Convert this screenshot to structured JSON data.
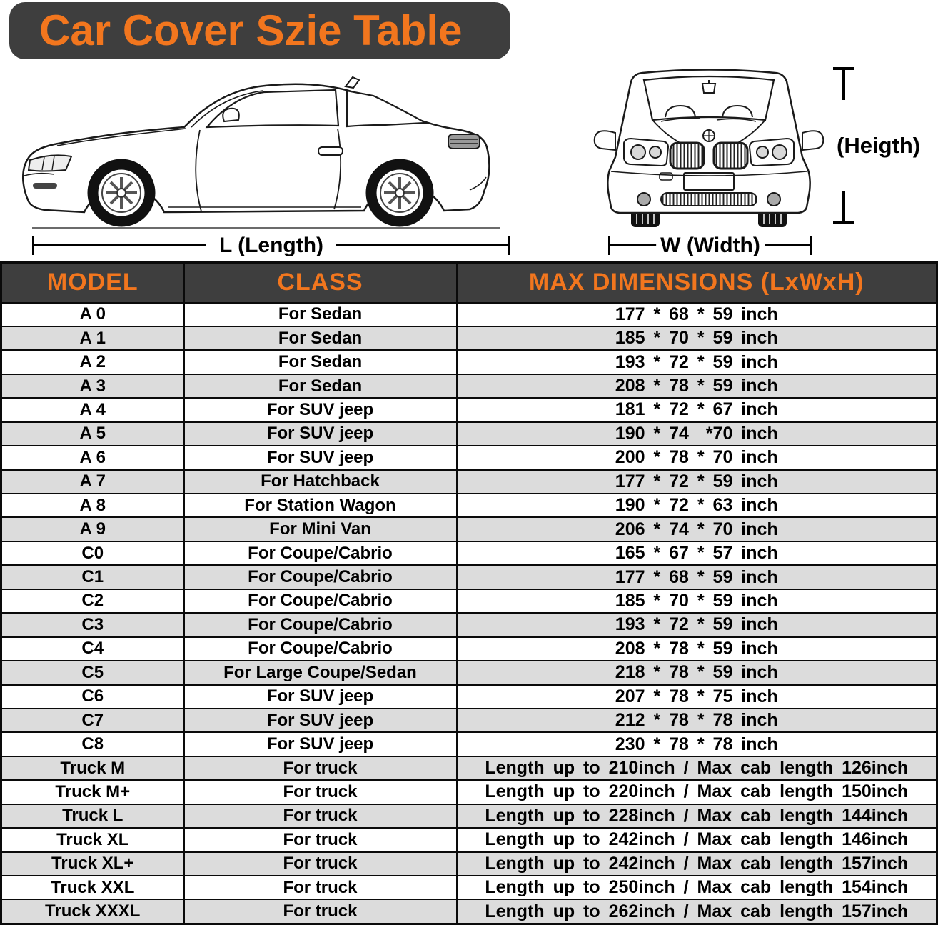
{
  "title": "Car Cover Szie Table",
  "diagram": {
    "length_label": "L (Length)",
    "width_label": "W (Width)",
    "height_label": "(Heigth)"
  },
  "colors": {
    "accent_orange": "#F2761E",
    "header_bg": "#3E3E3E",
    "row_alt_bg": "#DCDCDC",
    "border_black": "#0A0A0A"
  },
  "table": {
    "headers": [
      "MODEL",
      "CLASS",
      "MAX DIMENSIONS (LxWxH)"
    ],
    "rows": [
      {
        "model": "A 0",
        "class": "For Sedan",
        "dims": "177 * 68 * 59 inch"
      },
      {
        "model": "A 1",
        "class": "For Sedan",
        "dims": "185 * 70 * 59 inch"
      },
      {
        "model": "A 2",
        "class": "For Sedan",
        "dims": "193 * 72 * 59 inch"
      },
      {
        "model": "A 3",
        "class": "For Sedan",
        "dims": "208 * 78 * 59 inch"
      },
      {
        "model": "A 4",
        "class": "For SUV jeep",
        "dims": "181 * 72 * 67 inch"
      },
      {
        "model": "A 5",
        "class": "For SUV jeep",
        "dims": "190 * 74  *70 inch"
      },
      {
        "model": "A 6",
        "class": "For SUV jeep",
        "dims": "200 * 78 * 70 inch"
      },
      {
        "model": "A 7",
        "class": "For Hatchback",
        "dims": "177 * 72 * 59 inch"
      },
      {
        "model": "A 8",
        "class": "For Station Wagon",
        "dims": "190 * 72 * 63 inch"
      },
      {
        "model": "A 9",
        "class": "For Mini Van",
        "dims": "206 * 74 * 70 inch"
      },
      {
        "model": "C0",
        "class": "For Coupe/Cabrio",
        "dims": "165 * 67 * 57 inch"
      },
      {
        "model": "C1",
        "class": "For Coupe/Cabrio",
        "dims": "177 * 68 * 59 inch"
      },
      {
        "model": "C2",
        "class": "For Coupe/Cabrio",
        "dims": "185 * 70 * 59 inch"
      },
      {
        "model": "C3",
        "class": "For Coupe/Cabrio",
        "dims": "193 * 72 * 59 inch"
      },
      {
        "model": "C4",
        "class": "For Coupe/Cabrio",
        "dims": "208 * 78 * 59 inch"
      },
      {
        "model": "C5",
        "class": "For Large Coupe/Sedan",
        "dims": "218 * 78 * 59 inch"
      },
      {
        "model": "C6",
        "class": "For SUV jeep",
        "dims": "207 * 78 * 75 inch"
      },
      {
        "model": "C7",
        "class": "For SUV jeep",
        "dims": "212 * 78 * 78 inch"
      },
      {
        "model": "C8",
        "class": "For SUV jeep",
        "dims": "230 * 78 * 78 inch"
      },
      {
        "model": "Truck M",
        "class": "For truck",
        "dims": "Length up to 210inch / Max cab length 126inch"
      },
      {
        "model": "Truck M+",
        "class": "For truck",
        "dims": "Length up to 220inch / Max cab length 150inch"
      },
      {
        "model": "Truck L",
        "class": "For truck",
        "dims": "Length up to 228inch / Max cab length 144inch"
      },
      {
        "model": "Truck XL",
        "class": "For truck",
        "dims": "Length up to 242inch / Max cab length 146inch"
      },
      {
        "model": "Truck XL+",
        "class": "For truck",
        "dims": "Length up to 242inch / Max cab length 157inch"
      },
      {
        "model": "Truck XXL",
        "class": "For truck",
        "dims": "Length up to 250inch / Max cab length 154inch"
      },
      {
        "model": "Truck XXXL",
        "class": "For truck",
        "dims": "Length up to 262inch / Max cab length 157inch"
      }
    ]
  }
}
